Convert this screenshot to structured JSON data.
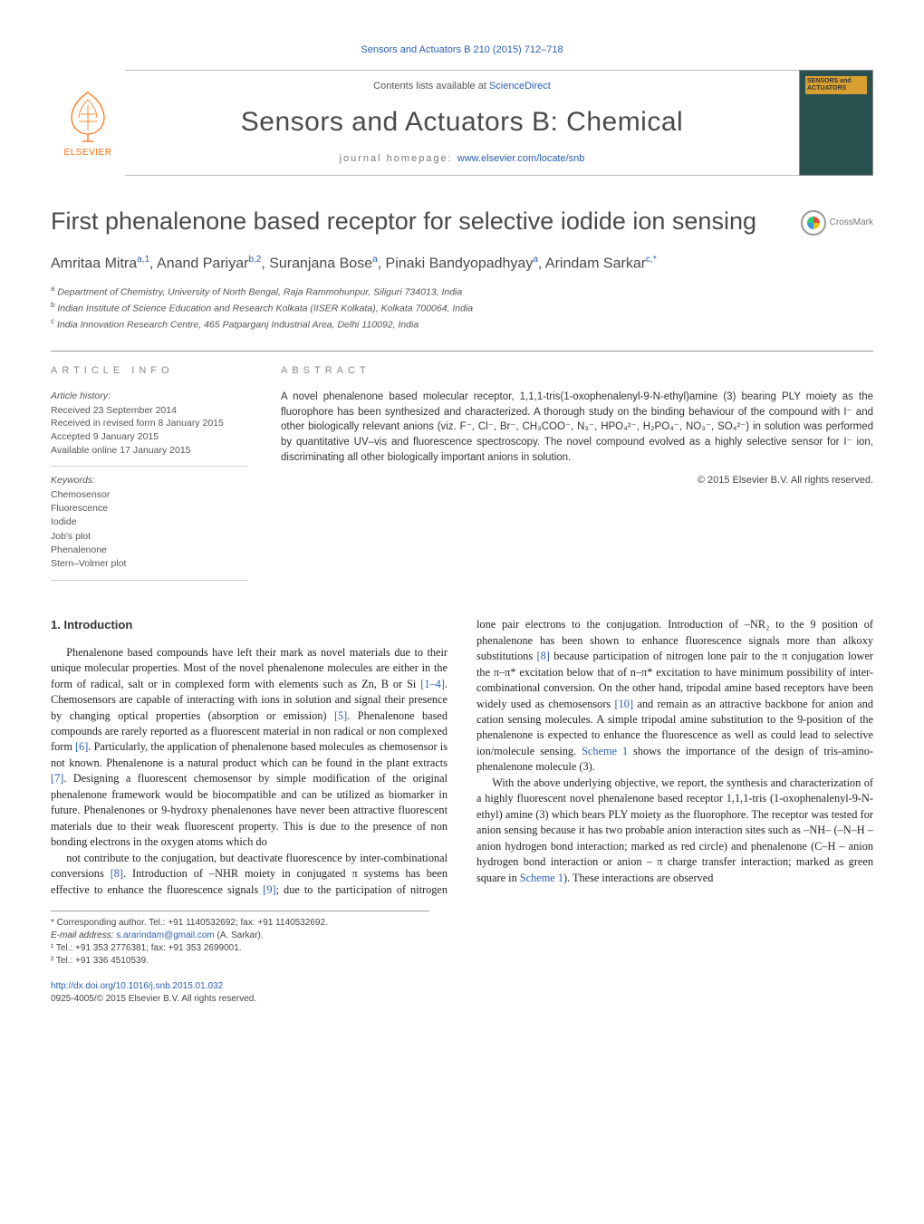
{
  "running_head": "Sensors and Actuators B 210 (2015) 712–718",
  "masthead": {
    "contents_prefix": "Contents lists available at ",
    "contents_link": "ScienceDirect",
    "journal_name": "Sensors and Actuators B: Chemical",
    "homepage_label": "journal homepage: ",
    "homepage_url": "www.elsevier.com/locate/snb",
    "publisher": "ELSEVIER",
    "cover_label": "SENSORS and ACTUATORS"
  },
  "article": {
    "title": "First phenalenone based receptor for selective iodide ion sensing",
    "crossmark": "CrossMark"
  },
  "authors_html": "Amritaa Mitra<span class='sup'>a,1</span>, Anand Pariyar<span class='sup'>b,2</span>, Suranjana Bose<span class='sup'>a</span>, Pinaki Bandyopadhyay<span class='sup'>a</span>, Arindam Sarkar<span class='sup'>c,*</span>",
  "affiliations": [
    {
      "sup": "a",
      "text": "Department of Chemistry, University of North Bengal, Raja Rammohunpur, Siliguri 734013, India"
    },
    {
      "sup": "b",
      "text": "Indian Institute of Science Education and Research Kolkata (IISER Kolkata), Kolkata 700064, India"
    },
    {
      "sup": "c",
      "text": "India Innovation Research Centre, 465 Patparganj Industrial Area, Delhi 110092, India"
    }
  ],
  "info": {
    "heading": "ARTICLE INFO",
    "history_head": "Article history:",
    "history": [
      "Received 23 September 2014",
      "Received in revised form 8 January 2015",
      "Accepted 9 January 2015",
      "Available online 17 January 2015"
    ],
    "keywords_head": "Keywords:",
    "keywords": [
      "Chemosensor",
      "Fluorescence",
      "Iodide",
      "Job's plot",
      "Phenalenone",
      "Stern–Volmer plot"
    ]
  },
  "abstract": {
    "heading": "ABSTRACT",
    "text": "A novel phenalenone based molecular receptor, 1,1,1-tris(1-oxophenalenyl-9-N-ethyl)amine (3) bearing PLY moiety as the fluorophore has been synthesized and characterized. A thorough study on the binding behaviour of the compound with I⁻ and other biologically relevant anions (viz. F⁻, Cl⁻, Br⁻, CH₃COO⁻, N₃⁻, HPO₄²⁻, H₂PO₄⁻, NO₃⁻, SO₄²⁻) in solution was performed by quantitative UV–vis and fluorescence spectroscopy. The novel compound evolved as a highly selective sensor for I⁻ ion, discriminating all other biologically important anions in solution.",
    "copyright": "© 2015 Elsevier B.V. All rights reserved."
  },
  "body": {
    "section_heading": "1. Introduction",
    "p1": "Phenalenone based compounds have left their mark as novel materials due to their unique molecular properties. Most of the novel phenalenone molecules are either in the form of radical, salt or in complexed form with elements such as Zn, B or Si [1–4]. Chemosensors are capable of interacting with ions in solution and signal their presence by changing optical properties (absorption or emission) [5]. Phenalenone based compounds are rarely reported as a fluorescent material in non radical or non complexed form [6]. Particularly, the application of phenalenone based molecules as chemosensor is not known. Phenalenone is a natural product which can be found in the plant extracts [7]. Designing a fluorescent chemosensor by simple modification of the original phenalenone framework would be biocompatible and can be utilized as biomarker in future. Phenalenones or 9-hydroxy phenalenones have never been attractive fluorescent materials due to their weak fluorescent property. This is due to the presence of non bonding electrons in the oxygen atoms which do",
    "p2": "not contribute to the conjugation, but deactivate fluorescence by inter-combinational conversions [8]. Introduction of –NHR moiety in conjugated π systems has been effective to enhance the fluorescence signals [9]; due to the participation of nitrogen lone pair electrons to the conjugation. Introduction of –NR₂ to the 9 position of phenalenone has been shown to enhance fluorescence signals more than alkoxy substitutions [8] because participation of nitrogen lone pair to the π conjugation lower the π–π* excitation below that of n–π* excitation to have minimum possibility of inter-combinational conversion. On the other hand, tripodal amine based receptors have been widely used as chemosensors [10] and remain as an attractive backbone for anion and cation sensing molecules. A simple tripodal amine substitution to the 9-position of the phenalenone is expected to enhance the fluorescence as well as could lead to selective ion/molecule sensing. Scheme 1 shows the importance of the design of tris-amino-phenalenone molecule (3).",
    "p3": "With the above underlying objective, we report, the synthesis and characterization of a highly fluorescent novel phenalenone based receptor 1,1,1-tris (1-oxophenalenyl-9-N-ethyl) amine (3) which bears PLY moiety as the fluorophore. The receptor was tested for anion sensing because it has two probable anion interaction sites such as –NH– (–N–H – anion hydrogen bond interaction; marked as red circle) and phenalenone (C–H – anion hydrogen bond interaction or anion – π charge transfer interaction; marked as green square in Scheme 1). These interactions are observed",
    "cites": {
      "c1": "[1–4]",
      "c5": "[5]",
      "c6": "[6]",
      "c7": "[7]",
      "c8": "[8]",
      "c9": "[9]",
      "c10": "[10]",
      "scheme1": "Scheme 1"
    }
  },
  "footnotes": {
    "corr": "* Corresponding author. Tel.: +91 1140532692; fax: +91 1140532692.",
    "email_label": "E-mail address: ",
    "email": "s.ararindam@gmail.com",
    "email_suffix": " (A. Sarkar).",
    "fn1": "¹ Tel.: +91 353 2776381; fax: +91 353 2699001.",
    "fn2": "² Tel.: +91 336 4510539."
  },
  "doi": {
    "url": "http://dx.doi.org/10.1016/j.snb.2015.01.032",
    "issn_line": "0925-4005/© 2015 Elsevier B.V. All rights reserved."
  },
  "colors": {
    "link": "#2a5db0",
    "orange": "#ff6c00",
    "text": "#1a1a1a",
    "rule": "#999999"
  }
}
